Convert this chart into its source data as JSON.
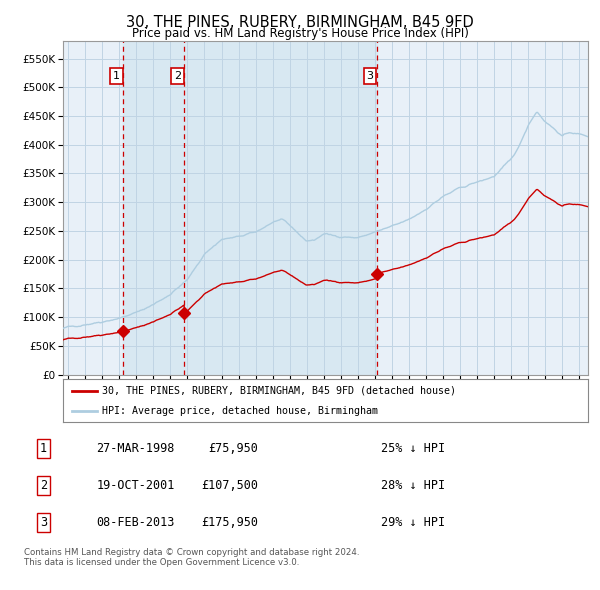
{
  "title": "30, THE PINES, RUBERY, BIRMINGHAM, B45 9FD",
  "subtitle": "Price paid vs. HM Land Registry's House Price Index (HPI)",
  "legend_line1": "30, THE PINES, RUBERY, BIRMINGHAM, B45 9FD (detached house)",
  "legend_line2": "HPI: Average price, detached house, Birmingham",
  "footer1": "Contains HM Land Registry data © Crown copyright and database right 2024.",
  "footer2": "This data is licensed under the Open Government Licence v3.0.",
  "transactions": [
    {
      "num": 1,
      "date": "27-MAR-1998",
      "date_val": 1998.23,
      "price": 75950,
      "pct": "25%",
      "dir": "↓"
    },
    {
      "num": 2,
      "date": "19-OCT-2001",
      "date_val": 2001.8,
      "price": 107500,
      "pct": "28%",
      "dir": "↓"
    },
    {
      "num": 3,
      "date": "08-FEB-2013",
      "date_val": 2013.1,
      "price": 175950,
      "pct": "29%",
      "dir": "↓"
    }
  ],
  "hpi_color": "#aecde0",
  "price_color": "#cc0000",
  "marker_color": "#cc0000",
  "vline_color": "#cc0000",
  "shade_color": "#d8e8f2",
  "grid_color": "#c0d4e4",
  "bg_color": "#e8f0f8",
  "ylim": [
    0,
    580000
  ],
  "yticks": [
    0,
    50000,
    100000,
    150000,
    200000,
    250000,
    300000,
    350000,
    400000,
    450000,
    500000,
    550000
  ],
  "xlim_start": 1994.7,
  "xlim_end": 2025.5
}
